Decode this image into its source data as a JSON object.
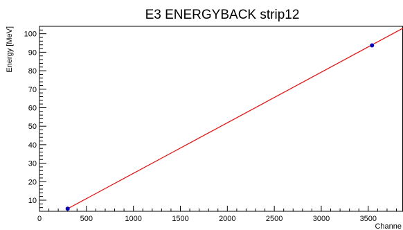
{
  "chart_data": {
    "type": "scatter",
    "title": "E3 ENERGYBACK strip12",
    "xlabel": "Channe",
    "ylabel": "Energy [MeV]",
    "xlim": [
      0,
      3870
    ],
    "ylim": [
      4,
      104
    ],
    "x_ticks": [
      0,
      500,
      1000,
      1500,
      2000,
      2500,
      3000,
      3500
    ],
    "y_ticks": [
      10,
      20,
      30,
      40,
      50,
      60,
      70,
      80,
      90,
      100
    ],
    "grid": false,
    "legend": "none",
    "series": [
      {
        "type": "scatter",
        "x": [
          300,
          3540
        ],
        "y": [
          5.4,
          93.7
        ],
        "color": "#0000cc"
      },
      {
        "type": "line",
        "x": [
          300,
          3870
        ],
        "y": [
          5.4,
          103.0
        ],
        "color": "#ff0000"
      }
    ]
  }
}
